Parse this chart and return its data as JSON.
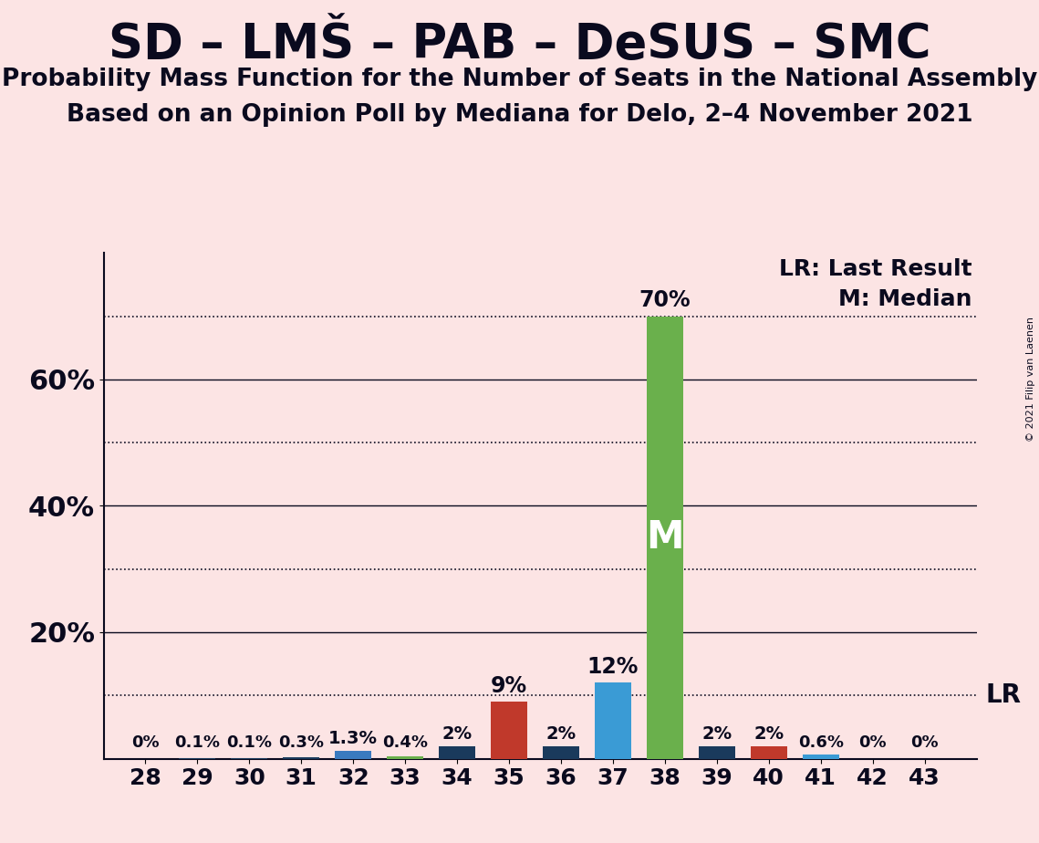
{
  "title": "SD – LMŠ – PAB – DeSUS – SMC",
  "subtitle1": "Probability Mass Function for the Number of Seats in the National Assembly",
  "subtitle2": "Based on an Opinion Poll by Mediana for Delo, 2–4 November 2021",
  "copyright": "© 2021 Filip van Laenen",
  "seats": [
    28,
    29,
    30,
    31,
    32,
    33,
    34,
    35,
    36,
    37,
    38,
    39,
    40,
    41,
    42,
    43
  ],
  "probabilities": [
    0.0,
    0.1,
    0.1,
    0.3,
    1.3,
    0.4,
    2.0,
    9.0,
    2.0,
    12.0,
    70.0,
    2.0,
    2.0,
    0.6,
    0.0,
    0.0
  ],
  "labels": [
    "0%",
    "0.1%",
    "0.1%",
    "0.3%",
    "1.3%",
    "0.4%",
    "2%",
    "9%",
    "2%",
    "12%",
    "70%",
    "2%",
    "2%",
    "0.6%",
    "0%",
    "0%"
  ],
  "median_seat": 38,
  "lr_line_value": 10.0,
  "bar_colors": {
    "28": "#1a3a5c",
    "29": "#1a3a5c",
    "30": "#1a3a5c",
    "31": "#1a3a5c",
    "32": "#3a7abf",
    "33": "#6ab04c",
    "34": "#1a3a5c",
    "35": "#c0392b",
    "36": "#1a3a5c",
    "37": "#3a9bd5",
    "38": "#6ab04c",
    "39": "#1a3a5c",
    "40": "#c0392b",
    "41": "#3a9bd5",
    "42": "#1a3a5c",
    "43": "#1a3a5c"
  },
  "background_color": "#fce4e4",
  "text_color": "#0a0a1e",
  "solid_gridlines": [
    20,
    40,
    60
  ],
  "dotted_gridlines": [
    10,
    30,
    50,
    70
  ],
  "ytick_positions": [
    20,
    40,
    60
  ],
  "ytick_labels": [
    "20%",
    "40%",
    "60%"
  ],
  "ylim": [
    0,
    80
  ],
  "legend_lr": "LR: Last Result",
  "legend_m": "M: Median",
  "median_label_color": "#ffffff",
  "lr_label": "LR"
}
